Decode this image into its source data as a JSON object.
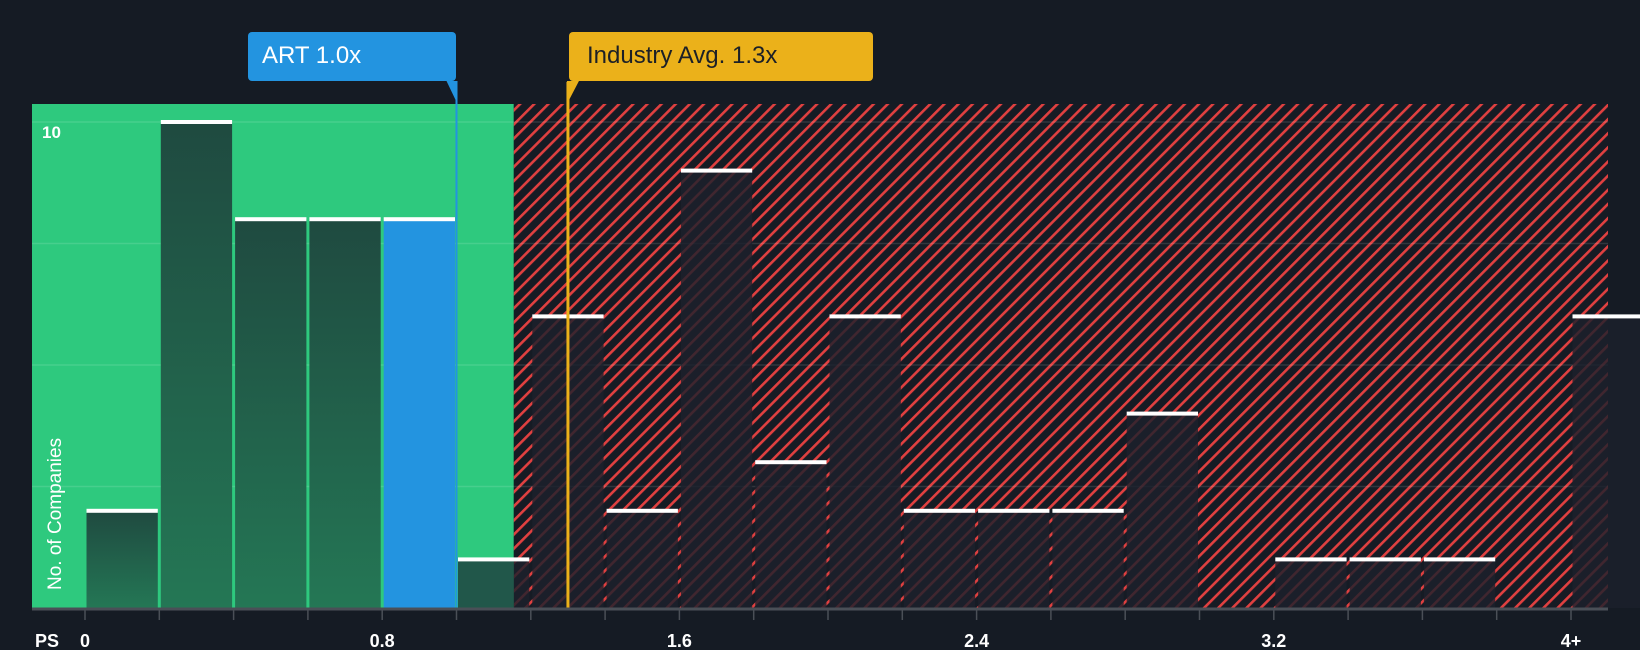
{
  "chart_data": {
    "type": "bar",
    "title": "",
    "xlabel": "PS",
    "ylabel": "No. of Companies",
    "x_ticks": [
      "0",
      "0.8",
      "1.6",
      "2.4",
      "3.2",
      "4+"
    ],
    "bin_width": 0.2,
    "categories": [
      "0-0.2",
      "0.2-0.4",
      "0.4-0.6",
      "0.6-0.8",
      "0.8-1.0",
      "1.0-1.2",
      "1.2-1.4",
      "1.4-1.6",
      "1.6-1.8",
      "1.8-2.0",
      "2.0-2.2",
      "2.2-2.4",
      "2.4-2.6",
      "2.6-2.8",
      "2.8-3.0",
      "3.0-3.2",
      "3.2-3.4",
      "3.4-3.6",
      "3.6-3.8",
      "3.8-4.0",
      "4+"
    ],
    "values": [
      2,
      10,
      8,
      8,
      8,
      1,
      6,
      2,
      9,
      3,
      6,
      2,
      2,
      2,
      4,
      0,
      1,
      1,
      1,
      0,
      6
    ],
    "highlight_index": 4,
    "ylim": [
      0,
      10.4
    ],
    "y_ticks_labeled": [
      10
    ],
    "gridlines": [
      2.5,
      5,
      7.5,
      10
    ],
    "annotations": [
      {
        "label": "ART 1.0x",
        "value": 1.0,
        "color": "#2394e0"
      },
      {
        "label": "Industry Avg. 1.3x",
        "value": 1.3,
        "color": "#ebb11a"
      }
    ],
    "regions": [
      {
        "name": "undervalued",
        "range": [
          0,
          1.2
        ],
        "color": "#2ec97e"
      },
      {
        "name": "overvalued",
        "range": [
          1.2,
          4.2
        ],
        "color": "#e04040",
        "pattern": "hatched"
      }
    ]
  },
  "labels": {
    "company": "ART 1.0x",
    "industry": "Industry Avg. 1.3x",
    "y_axis": "No. of Companies",
    "y_top": "10",
    "x_axis_prefix": "PS"
  },
  "colors": {
    "background": "#151b24",
    "green": "#2ec97e",
    "blue": "#2394e0",
    "gold": "#ebb11a",
    "red_hatch": "#e04040"
  }
}
